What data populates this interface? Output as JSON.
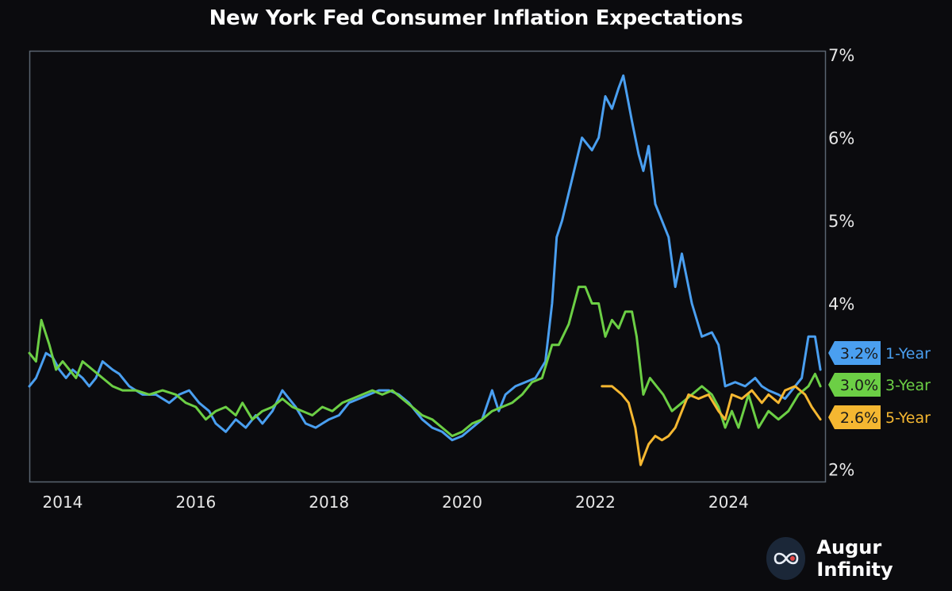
{
  "title": "New York Fed Consumer Inflation Expectations",
  "brand": {
    "name": "Augur Infinity",
    "logo_icon": "infinity-icon"
  },
  "colors": {
    "background": "#0b0b0e",
    "frame": "#5a6470",
    "one_year": "#4a9ff0",
    "three_year": "#6ccf45",
    "five_year": "#f5b731",
    "text": "#ffffff",
    "tick_text": "#e6e6e6"
  },
  "chart_data": {
    "type": "line",
    "title": "New York Fed Consumer Inflation Expectations",
    "xlabel": "",
    "ylabel": "",
    "x_range": [
      2013.5,
      2025.45
    ],
    "y_range": [
      1.85,
      7.05
    ],
    "x_ticks": [
      {
        "value": 2014,
        "label": "2014"
      },
      {
        "value": 2016,
        "label": "2016"
      },
      {
        "value": 2018,
        "label": "2018"
      },
      {
        "value": 2020,
        "label": "2020"
      },
      {
        "value": 2022,
        "label": "2022"
      },
      {
        "value": 2024,
        "label": "2024"
      }
    ],
    "y_ticks": [
      {
        "value": 2,
        "label": "2%"
      },
      {
        "value": 4,
        "label": "4%"
      },
      {
        "value": 5,
        "label": "5%"
      },
      {
        "value": 6,
        "label": "6%"
      },
      {
        "value": 7,
        "label": "7%"
      }
    ],
    "y_axis_side": "right",
    "grid": false,
    "legend": "end labels on the right axis",
    "series": [
      {
        "name": "1-Year",
        "end_label": "3.2%",
        "color": "#4a9ff0",
        "points": [
          [
            2013.5,
            3.0
          ],
          [
            2013.6,
            3.1
          ],
          [
            2013.75,
            3.4
          ],
          [
            2013.85,
            3.35
          ],
          [
            2013.95,
            3.2
          ],
          [
            2014.05,
            3.1
          ],
          [
            2014.15,
            3.2
          ],
          [
            2014.3,
            3.1
          ],
          [
            2014.4,
            3.0
          ],
          [
            2014.5,
            3.1
          ],
          [
            2014.6,
            3.3
          ],
          [
            2014.75,
            3.2
          ],
          [
            2014.85,
            3.15
          ],
          [
            2015.0,
            3.0
          ],
          [
            2015.2,
            2.9
          ],
          [
            2015.4,
            2.9
          ],
          [
            2015.6,
            2.8
          ],
          [
            2015.75,
            2.9
          ],
          [
            2015.9,
            2.95
          ],
          [
            2016.05,
            2.8
          ],
          [
            2016.2,
            2.7
          ],
          [
            2016.3,
            2.55
          ],
          [
            2016.45,
            2.45
          ],
          [
            2016.6,
            2.6
          ],
          [
            2016.75,
            2.5
          ],
          [
            2016.9,
            2.65
          ],
          [
            2017.0,
            2.55
          ],
          [
            2017.15,
            2.7
          ],
          [
            2017.3,
            2.95
          ],
          [
            2017.4,
            2.85
          ],
          [
            2017.5,
            2.75
          ],
          [
            2017.65,
            2.55
          ],
          [
            2017.8,
            2.5
          ],
          [
            2017.9,
            2.55
          ],
          [
            2018.0,
            2.6
          ],
          [
            2018.15,
            2.65
          ],
          [
            2018.3,
            2.8
          ],
          [
            2018.45,
            2.85
          ],
          [
            2018.6,
            2.9
          ],
          [
            2018.75,
            2.95
          ],
          [
            2018.9,
            2.95
          ],
          [
            2019.05,
            2.9
          ],
          [
            2019.2,
            2.8
          ],
          [
            2019.4,
            2.6
          ],
          [
            2019.55,
            2.5
          ],
          [
            2019.7,
            2.45
          ],
          [
            2019.85,
            2.35
          ],
          [
            2020.0,
            2.4
          ],
          [
            2020.15,
            2.5
          ],
          [
            2020.3,
            2.6
          ],
          [
            2020.45,
            2.95
          ],
          [
            2020.55,
            2.7
          ],
          [
            2020.65,
            2.9
          ],
          [
            2020.8,
            3.0
          ],
          [
            2020.95,
            3.05
          ],
          [
            2021.1,
            3.1
          ],
          [
            2021.25,
            3.3
          ],
          [
            2021.35,
            4.0
          ],
          [
            2021.42,
            4.8
          ],
          [
            2021.5,
            5.0
          ],
          [
            2021.65,
            5.5
          ],
          [
            2021.8,
            6.0
          ],
          [
            2021.95,
            5.85
          ],
          [
            2022.05,
            6.0
          ],
          [
            2022.15,
            6.5
          ],
          [
            2022.25,
            6.35
          ],
          [
            2022.35,
            6.6
          ],
          [
            2022.42,
            6.75
          ],
          [
            2022.55,
            6.2
          ],
          [
            2022.65,
            5.8
          ],
          [
            2022.72,
            5.6
          ],
          [
            2022.8,
            5.9
          ],
          [
            2022.9,
            5.2
          ],
          [
            2023.0,
            5.0
          ],
          [
            2023.1,
            4.8
          ],
          [
            2023.2,
            4.2
          ],
          [
            2023.3,
            4.6
          ],
          [
            2023.45,
            4.0
          ],
          [
            2023.6,
            3.6
          ],
          [
            2023.75,
            3.65
          ],
          [
            2023.85,
            3.5
          ],
          [
            2023.95,
            3.0
          ],
          [
            2024.1,
            3.05
          ],
          [
            2024.25,
            3.0
          ],
          [
            2024.4,
            3.1
          ],
          [
            2024.5,
            3.0
          ],
          [
            2024.6,
            2.95
          ],
          [
            2024.75,
            2.9
          ],
          [
            2024.85,
            2.85
          ],
          [
            2025.0,
            3.0
          ],
          [
            2025.1,
            3.1
          ],
          [
            2025.2,
            3.6
          ],
          [
            2025.3,
            3.6
          ],
          [
            2025.38,
            3.2
          ]
        ]
      },
      {
        "name": "3-Year",
        "end_label": "3.0%",
        "color": "#6ccf45",
        "points": [
          [
            2013.5,
            3.4
          ],
          [
            2013.6,
            3.3
          ],
          [
            2013.68,
            3.8
          ],
          [
            2013.8,
            3.5
          ],
          [
            2013.9,
            3.2
          ],
          [
            2014.0,
            3.3
          ],
          [
            2014.1,
            3.2
          ],
          [
            2014.2,
            3.1
          ],
          [
            2014.3,
            3.3
          ],
          [
            2014.45,
            3.2
          ],
          [
            2014.6,
            3.1
          ],
          [
            2014.75,
            3.0
          ],
          [
            2014.9,
            2.95
          ],
          [
            2015.1,
            2.95
          ],
          [
            2015.3,
            2.9
          ],
          [
            2015.5,
            2.95
          ],
          [
            2015.7,
            2.9
          ],
          [
            2015.85,
            2.8
          ],
          [
            2016.0,
            2.75
          ],
          [
            2016.15,
            2.6
          ],
          [
            2016.3,
            2.7
          ],
          [
            2016.45,
            2.75
          ],
          [
            2016.6,
            2.65
          ],
          [
            2016.7,
            2.8
          ],
          [
            2016.85,
            2.6
          ],
          [
            2017.0,
            2.7
          ],
          [
            2017.15,
            2.75
          ],
          [
            2017.3,
            2.85
          ],
          [
            2017.45,
            2.75
          ],
          [
            2017.6,
            2.7
          ],
          [
            2017.75,
            2.65
          ],
          [
            2017.9,
            2.75
          ],
          [
            2018.05,
            2.7
          ],
          [
            2018.2,
            2.8
          ],
          [
            2018.35,
            2.85
          ],
          [
            2018.5,
            2.9
          ],
          [
            2018.65,
            2.95
          ],
          [
            2018.8,
            2.9
          ],
          [
            2018.95,
            2.95
          ],
          [
            2019.1,
            2.85
          ],
          [
            2019.25,
            2.75
          ],
          [
            2019.4,
            2.65
          ],
          [
            2019.55,
            2.6
          ],
          [
            2019.7,
            2.5
          ],
          [
            2019.85,
            2.4
          ],
          [
            2020.0,
            2.45
          ],
          [
            2020.15,
            2.55
          ],
          [
            2020.3,
            2.6
          ],
          [
            2020.45,
            2.7
          ],
          [
            2020.6,
            2.75
          ],
          [
            2020.75,
            2.8
          ],
          [
            2020.9,
            2.9
          ],
          [
            2021.05,
            3.05
          ],
          [
            2021.2,
            3.1
          ],
          [
            2021.35,
            3.5
          ],
          [
            2021.45,
            3.5
          ],
          [
            2021.6,
            3.75
          ],
          [
            2021.75,
            4.2
          ],
          [
            2021.85,
            4.2
          ],
          [
            2021.95,
            4.0
          ],
          [
            2022.05,
            4.0
          ],
          [
            2022.15,
            3.6
          ],
          [
            2022.25,
            3.8
          ],
          [
            2022.35,
            3.7
          ],
          [
            2022.45,
            3.9
          ],
          [
            2022.55,
            3.9
          ],
          [
            2022.62,
            3.6
          ],
          [
            2022.72,
            2.9
          ],
          [
            2022.82,
            3.1
          ],
          [
            2022.92,
            3.0
          ],
          [
            2023.02,
            2.9
          ],
          [
            2023.15,
            2.7
          ],
          [
            2023.3,
            2.8
          ],
          [
            2023.45,
            2.9
          ],
          [
            2023.6,
            3.0
          ],
          [
            2023.75,
            2.9
          ],
          [
            2023.85,
            2.75
          ],
          [
            2023.95,
            2.5
          ],
          [
            2024.05,
            2.7
          ],
          [
            2024.15,
            2.5
          ],
          [
            2024.3,
            2.9
          ],
          [
            2024.45,
            2.5
          ],
          [
            2024.6,
            2.7
          ],
          [
            2024.75,
            2.6
          ],
          [
            2024.9,
            2.7
          ],
          [
            2025.05,
            2.9
          ],
          [
            2025.2,
            3.0
          ],
          [
            2025.3,
            3.15
          ],
          [
            2025.38,
            3.0
          ]
        ]
      },
      {
        "name": "5-Year",
        "end_label": "2.6%",
        "color": "#f5b731",
        "points": [
          [
            2022.1,
            3.0
          ],
          [
            2022.25,
            3.0
          ],
          [
            2022.4,
            2.9
          ],
          [
            2022.5,
            2.8
          ],
          [
            2022.6,
            2.5
          ],
          [
            2022.68,
            2.05
          ],
          [
            2022.8,
            2.3
          ],
          [
            2022.9,
            2.4
          ],
          [
            2023.0,
            2.35
          ],
          [
            2023.1,
            2.4
          ],
          [
            2023.2,
            2.5
          ],
          [
            2023.3,
            2.7
          ],
          [
            2023.4,
            2.9
          ],
          [
            2023.55,
            2.85
          ],
          [
            2023.7,
            2.9
          ],
          [
            2023.85,
            2.7
          ],
          [
            2023.95,
            2.6
          ],
          [
            2024.05,
            2.9
          ],
          [
            2024.2,
            2.85
          ],
          [
            2024.35,
            2.95
          ],
          [
            2024.5,
            2.8
          ],
          [
            2024.6,
            2.9
          ],
          [
            2024.75,
            2.8
          ],
          [
            2024.85,
            2.95
          ],
          [
            2025.0,
            3.0
          ],
          [
            2025.15,
            2.9
          ],
          [
            2025.25,
            2.75
          ],
          [
            2025.38,
            2.6
          ]
        ]
      }
    ]
  }
}
